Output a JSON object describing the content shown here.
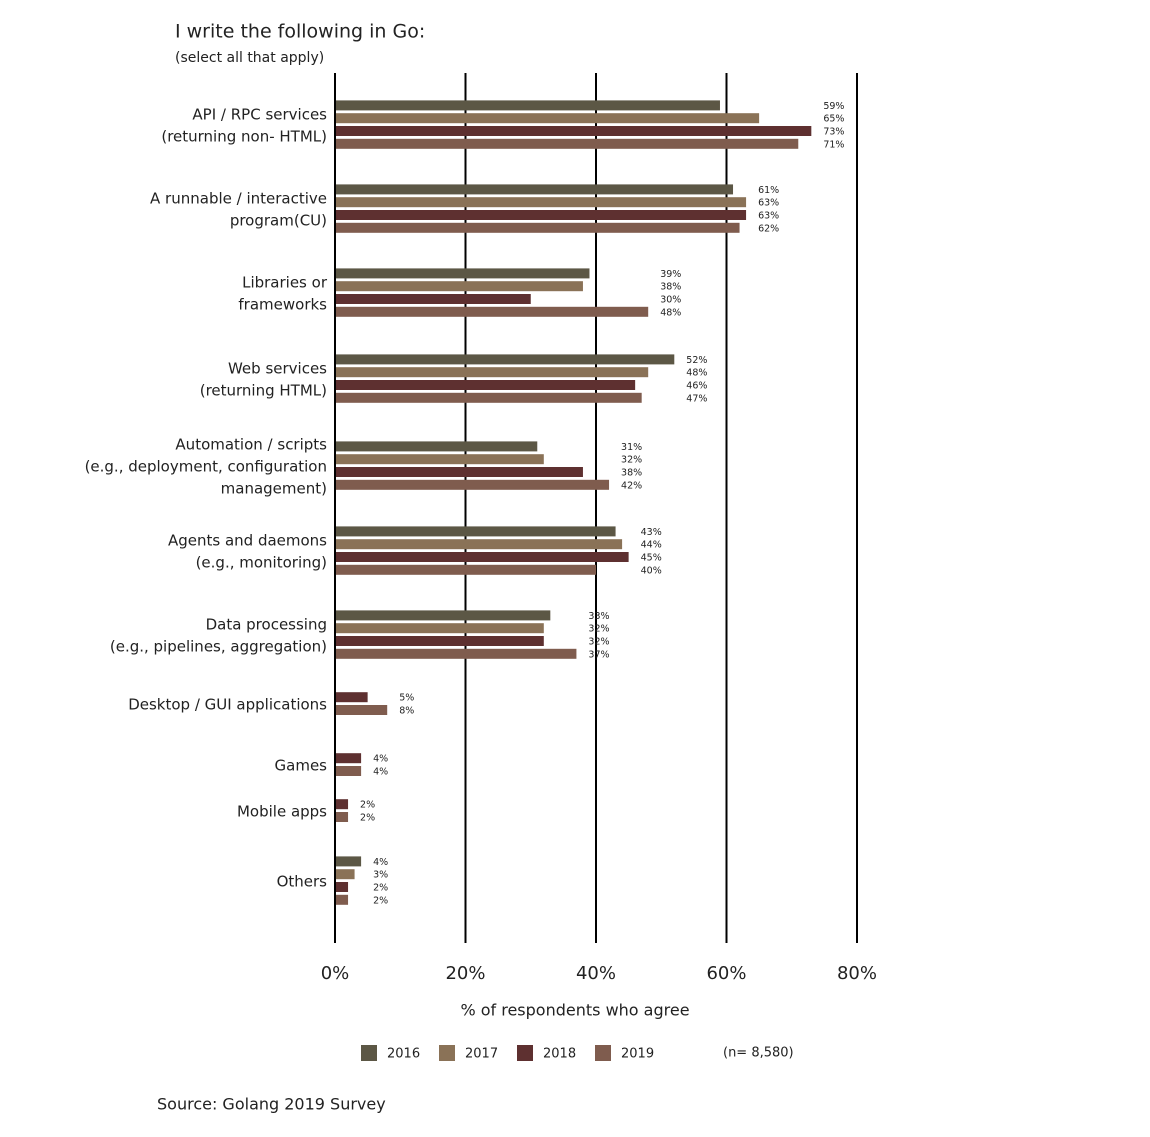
{
  "chart_data": {
    "type": "bar",
    "orientation": "horizontal",
    "title": "I write the following in Go:",
    "subtitle": "(select all that apply)",
    "x_label": "% of respondents who agree",
    "note": "(n= 8,580)",
    "source": "Source: Golang 2019 Survey",
    "categories": [
      [
        "API / RPC services",
        "(returning non- HTML)"
      ],
      [
        "A runnable / interactive",
        "program(CU)"
      ],
      [
        "Libraries or",
        "frameworks"
      ],
      [
        "Web services",
        "(returning HTML)"
      ],
      [
        "Automation / scripts",
        "(e.g., deployment, configuration",
        "management)"
      ],
      [
        "Agents and daemons",
        "(e.g., monitoring)"
      ],
      [
        "Data processing",
        "(e.g., pipelines, aggregation)"
      ],
      [
        "Desktop / GUI applications"
      ],
      [
        "Games"
      ],
      [
        "Mobile apps"
      ],
      [
        "Others"
      ]
    ],
    "series": [
      {
        "name": "2016",
        "color": "#5c5745",
        "values": [
          59,
          61,
          39,
          52,
          31,
          43,
          33,
          null,
          null,
          null,
          4
        ],
        "value_labels": [
          "59%",
          "61%",
          "39%",
          "52%",
          "31%",
          "43%",
          "33%",
          null,
          null,
          null,
          "4%"
        ]
      },
      {
        "name": "2017",
        "color": "#8a7257",
        "values": [
          65,
          63,
          38,
          48,
          32,
          44,
          32,
          null,
          null,
          null,
          3
        ],
        "value_labels": [
          "65%",
          "63%",
          "38%",
          "48%",
          "32%",
          "44%",
          "32%",
          null,
          null,
          null,
          "3%"
        ]
      },
      {
        "name": "2018",
        "color": "#5e3030",
        "values": [
          73,
          63,
          30,
          46,
          38,
          45,
          32,
          5,
          4,
          2,
          2
        ],
        "value_labels": [
          "73%",
          "63%",
          "30%",
          "46%",
          "38%",
          "45%",
          "32%",
          "5%",
          "4%",
          "2%",
          "2%"
        ]
      },
      {
        "name": "2019",
        "color": "#7f5c4e",
        "values": [
          71,
          62,
          48,
          47,
          42,
          40,
          37,
          8,
          4,
          2,
          2
        ],
        "value_labels": [
          "71%",
          "62%",
          "48%",
          "47%",
          "42%",
          "40%",
          "37%",
          "8%",
          "4%",
          "2%",
          "2%"
        ]
      }
    ],
    "xlim": [
      0,
      80
    ],
    "xticks": [
      {
        "value": 0,
        "label": "0%"
      },
      {
        "value": 20,
        "label": "20%"
      },
      {
        "value": 40,
        "label": "40%"
      },
      {
        "value": 60,
        "label": "60%"
      },
      {
        "value": 80,
        "label": "80%"
      }
    ],
    "grid": true,
    "legend": "bottom"
  }
}
